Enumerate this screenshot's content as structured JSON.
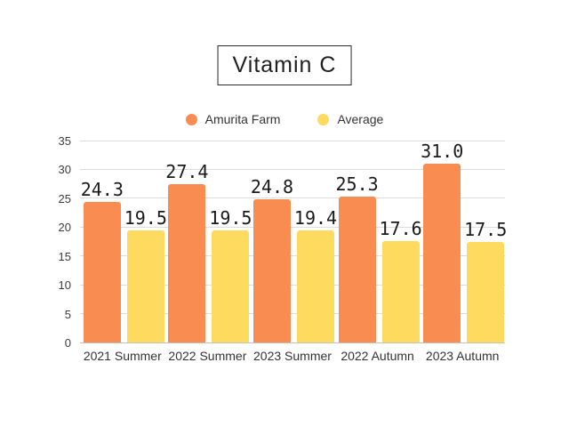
{
  "page": {
    "background": "#ffffff"
  },
  "chart_data": {
    "type": "bar",
    "title": "Vitamin C",
    "categories": [
      "2021 Summer",
      "2022 Summer",
      "2023 Summer",
      "2022 Autumn",
      "2023 Autumn"
    ],
    "series": [
      {
        "name": "Amurita Farm",
        "color": "#f98d51",
        "values": [
          24.3,
          27.4,
          24.8,
          25.3,
          31.0
        ]
      },
      {
        "name": "Average",
        "color": "#fedb5e",
        "values": [
          19.5,
          19.5,
          19.4,
          17.6,
          17.5
        ]
      }
    ],
    "ylim": [
      0,
      35
    ],
    "yticks": [
      0,
      5,
      10,
      15,
      20,
      25,
      30,
      35
    ],
    "grid": true,
    "legend_position": "top",
    "value_label_decimals": 1,
    "colors": {
      "gridline": "#dddddd",
      "baseline": "#c2c2c2",
      "tick_text": "#3c3c3c",
      "value_text": "#1a1a1a"
    }
  }
}
